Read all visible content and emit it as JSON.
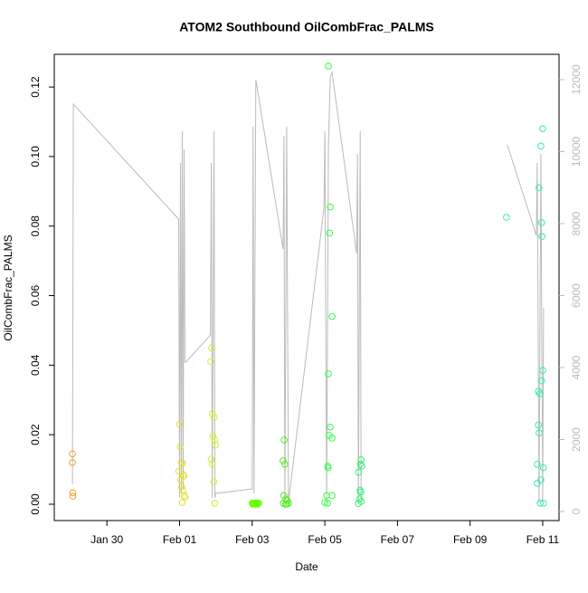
{
  "chart_data": {
    "type": "scatter",
    "title": "ATOM2 Southbound OilCombFrac_PALMS",
    "x_label": "Date",
    "y_label": "OilCombFrac_PALMS",
    "xlim": [
      28.55,
      42.45
    ],
    "xticks": [
      {
        "value": 30,
        "label": "Jan 30"
      },
      {
        "value": 32,
        "label": "Feb 01"
      },
      {
        "value": 34,
        "label": "Feb 03"
      },
      {
        "value": 36,
        "label": "Feb 05"
      },
      {
        "value": 38,
        "label": "Feb 07"
      },
      {
        "value": 40,
        "label": "Feb 09"
      },
      {
        "value": 42,
        "label": "Feb 11"
      }
    ],
    "ylim": [
      -0.0047,
      0.1294
    ],
    "yticks": [
      {
        "value": 0,
        "label": "0.00"
      },
      0.02,
      0.04,
      0.06,
      0.08,
      {
        "value": 0.1,
        "label": "0.10"
      },
      0.12
    ],
    "y2lim": [
      -252,
      12704
    ],
    "y2ticks": [
      0,
      2000,
      4000,
      6000,
      8000,
      10000,
      12000
    ],
    "y2color": "#bbbbbb",
    "series": [
      {
        "kind": "line",
        "axis": "y2",
        "color": "#bbbbbb",
        "x": [
          29.05,
          29.075,
          31.975,
          32.0,
          32.025,
          32.05,
          32.075,
          32.1,
          32.125,
          32.15,
          32.175,
          32.85,
          32.875,
          32.9,
          32.95,
          32.975,
          33.0,
          34.0,
          34.025,
          34.05,
          34.1,
          34.15,
          34.85,
          34.875,
          34.9,
          34.95,
          35.0,
          35.975,
          36.0,
          36.05,
          36.1,
          36.15,
          36.2,
          36.875,
          36.9,
          36.925,
          36.975,
          37.0,
          null,
          41.025,
          41.825,
          41.85,
          41.9,
          41.95,
          42.0,
          42.025
        ],
        "values": [
          755,
          11320,
          8125,
          377,
          9685,
          503,
          10566,
          629,
          10063,
          4151,
          4151,
          4906,
          9685,
          377,
          10566,
          377,
          503,
          629,
          10692,
          503,
          12000,
          11698,
          7296,
          10440,
          252,
          10692,
          252,
          8428,
          10566,
          252,
          10189,
          12075,
          12201,
          7170,
          9937,
          252,
          10566,
          252,
          null,
          10189,
          7673,
          9685,
          252,
          9937,
          252,
          5660
        ]
      },
      {
        "kind": "points",
        "color": "#f0a030",
        "x": [
          29.05,
          29.05,
          29.06,
          29.06
        ],
        "values": [
          0.0145,
          0.012,
          0.0033,
          0.0023
        ]
      },
      {
        "kind": "points",
        "color": "#e4e030",
        "x": [
          32.0,
          32.02,
          32.05,
          32.08,
          31.98,
          32.1,
          32.12,
          32.03,
          32.06,
          32.09,
          32.13,
          32.15,
          32.07
        ],
        "values": [
          0.023,
          0.0165,
          0.012,
          0.0118,
          0.0095,
          0.0085,
          0.008,
          0.007,
          0.005,
          0.004,
          0.0025,
          0.002,
          0.0005
        ]
      },
      {
        "kind": "points",
        "color": "#d0f030",
        "x": [
          32.88,
          32.86,
          32.9,
          32.95,
          32.92,
          32.97,
          32.99,
          32.87,
          32.9,
          32.94,
          32.97
        ],
        "values": [
          0.045,
          0.041,
          0.026,
          0.025,
          0.0195,
          0.0185,
          0.017,
          0.013,
          0.0115,
          0.0065,
          0.0003
        ]
      },
      {
        "kind": "points",
        "color": "#66ff00",
        "x": [
          34.0,
          34.03,
          34.06,
          34.09,
          34.12,
          34.15,
          34.18,
          34.02,
          34.08,
          34.14
        ],
        "values": [
          0.0003,
          0.0003,
          0.0003,
          0.0003,
          0.0003,
          0.0003,
          0.0003,
          0.0,
          0.0,
          0.0
        ]
      },
      {
        "kind": "points",
        "color": "#55ee22",
        "x": [
          34.88,
          34.85,
          34.9,
          34.87,
          34.93,
          34.97,
          34.86,
          34.92,
          34.95,
          35.0
        ],
        "values": [
          0.0185,
          0.0125,
          0.0115,
          0.0025,
          0.0015,
          0.001,
          0.0003,
          0.0,
          0.0,
          0.0003
        ]
      },
      {
        "kind": "points",
        "color": "#33ff44",
        "x": [
          36.1,
          36.15,
          36.13,
          36.2,
          36.1,
          36.15,
          36.12,
          36.2,
          36.08,
          36.09,
          36.05,
          36.2,
          36.0,
          36.07
        ],
        "values": [
          0.126,
          0.0855,
          0.078,
          0.054,
          0.0375,
          0.0222,
          0.0198,
          0.019,
          0.011,
          0.0105,
          0.0025,
          0.0025,
          0.0005,
          0.0003
        ]
      },
      {
        "kind": "points",
        "color": "#33ee77",
        "x": [
          37.0,
          36.98,
          37.02,
          36.93,
          36.97,
          36.99,
          36.96,
          37.0,
          36.92
        ],
        "values": [
          0.0128,
          0.0115,
          0.011,
          0.0092,
          0.004,
          0.0035,
          0.0015,
          0.0008,
          0.0002
        ]
      },
      {
        "kind": "points",
        "color": "#33eeaa",
        "x": [
          41.0,
          42.0,
          41.95,
          41.9,
          41.97,
          41.98,
          42.0,
          41.97,
          41.88,
          41.92,
          41.88,
          41.9,
          41.85,
          42.02,
          41.95,
          41.85,
          41.93,
          42.02
        ],
        "values": [
          0.0825,
          0.108,
          0.103,
          0.091,
          0.081,
          0.077,
          0.0385,
          0.0355,
          0.0325,
          0.0318,
          0.0228,
          0.0205,
          0.0115,
          0.0105,
          0.007,
          0.006,
          0.0003,
          0.0003
        ]
      }
    ]
  }
}
